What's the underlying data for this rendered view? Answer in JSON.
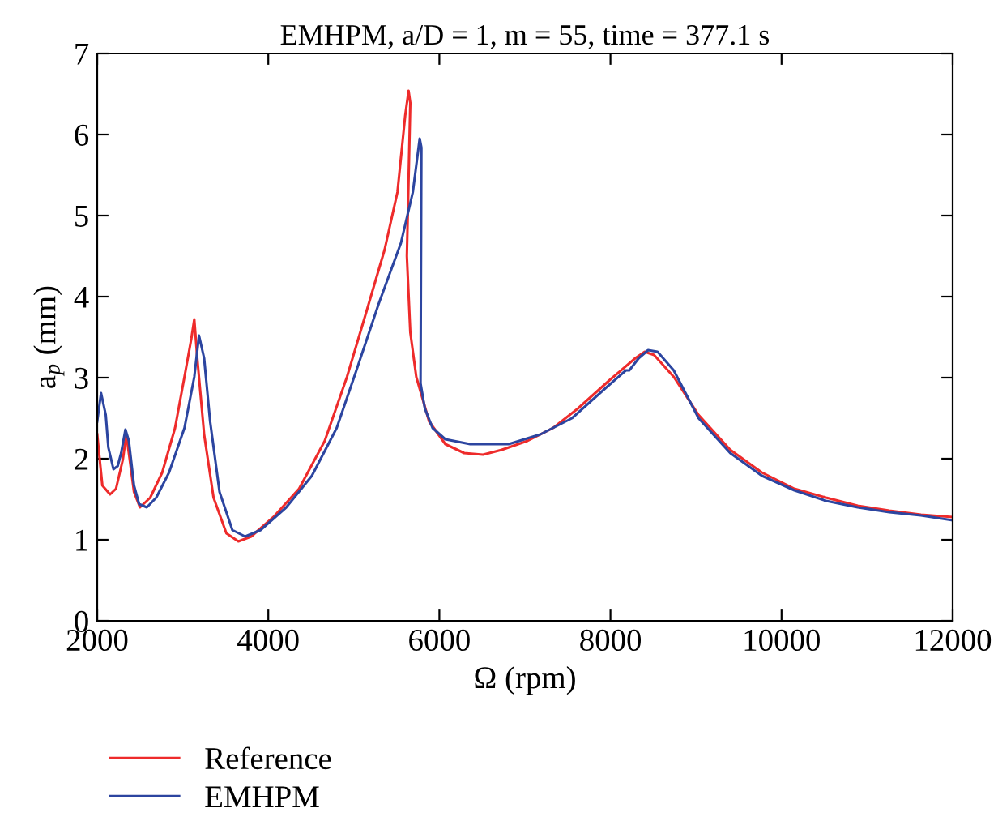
{
  "chart_data": {
    "type": "line",
    "title": "EMHPM, a/D = 1, m = 55, time = 377.1 s",
    "xlabel": "Ω (rpm)",
    "ylabel": "a$_{p}$ (mm)",
    "xlim": [
      2000,
      12000
    ],
    "xticks": [
      2000,
      4000,
      6000,
      8000,
      10000,
      12000
    ],
    "ylim": [
      0,
      7
    ],
    "yticks": [
      0,
      1,
      2,
      3,
      4,
      5,
      6,
      7
    ],
    "grid": false,
    "legend": "bottom left",
    "marker": "none",
    "line_style": "solid",
    "series": [
      {
        "name": "Reference",
        "color": "#ee2b2b",
        "x": [
          2000,
          2060,
          2150,
          2220,
          2300,
          2340,
          2380,
          2430,
          2500,
          2620,
          2760,
          2910,
          3020,
          3100,
          3135,
          3170,
          3250,
          3360,
          3510,
          3650,
          3800,
          4060,
          4360,
          4660,
          4920,
          5140,
          5360,
          5510,
          5600,
          5640,
          5660,
          5620,
          5660,
          5730,
          5880,
          6070,
          6290,
          6510,
          6730,
          7030,
          7330,
          7620,
          7990,
          8290,
          8400,
          8510,
          8740,
          9030,
          9400,
          9770,
          10150,
          10520,
          10890,
          11260,
          11630,
          12000
        ],
        "values": [
          2.3,
          1.67,
          1.56,
          1.63,
          1.99,
          2.3,
          1.99,
          1.59,
          1.4,
          1.52,
          1.83,
          2.38,
          3.01,
          3.48,
          3.72,
          3.24,
          2.3,
          1.52,
          1.08,
          0.98,
          1.04,
          1.28,
          1.63,
          2.22,
          3.01,
          3.79,
          4.58,
          5.29,
          6.23,
          6.54,
          6.39,
          4.5,
          3.56,
          3.01,
          2.46,
          2.18,
          2.07,
          2.05,
          2.11,
          2.22,
          2.38,
          2.62,
          2.97,
          3.24,
          3.32,
          3.28,
          3.01,
          2.54,
          2.11,
          1.83,
          1.63,
          1.52,
          1.42,
          1.36,
          1.31,
          1.28
        ]
      },
      {
        "name": "EMHPM",
        "color": "#2c45a0",
        "x": [
          2000,
          2045,
          2100,
          2130,
          2190,
          2240,
          2280,
          2330,
          2370,
          2430,
          2490,
          2580,
          2690,
          2840,
          3020,
          3135,
          3190,
          3250,
          3320,
          3430,
          3580,
          3730,
          3910,
          4210,
          4510,
          4800,
          5030,
          5290,
          5550,
          5690,
          5770,
          5790,
          5780,
          5830,
          5920,
          6070,
          6360,
          6810,
          7180,
          7550,
          7920,
          8180,
          8220,
          8330,
          8440,
          8550,
          8740,
          9030,
          9400,
          9770,
          10150,
          10520,
          10890,
          11260,
          11630,
          12000
        ],
        "values": [
          2.46,
          2.81,
          2.54,
          2.14,
          1.87,
          1.91,
          2.07,
          2.36,
          2.22,
          1.67,
          1.44,
          1.4,
          1.52,
          1.83,
          2.38,
          3.01,
          3.52,
          3.24,
          2.46,
          1.59,
          1.12,
          1.04,
          1.12,
          1.4,
          1.79,
          2.38,
          3.09,
          3.91,
          4.66,
          5.29,
          5.95,
          5.84,
          2.93,
          2.62,
          2.38,
          2.24,
          2.18,
          2.18,
          2.3,
          2.5,
          2.85,
          3.09,
          3.09,
          3.24,
          3.34,
          3.32,
          3.09,
          2.5,
          2.07,
          1.79,
          1.61,
          1.48,
          1.4,
          1.34,
          1.3,
          1.24
        ]
      }
    ]
  }
}
